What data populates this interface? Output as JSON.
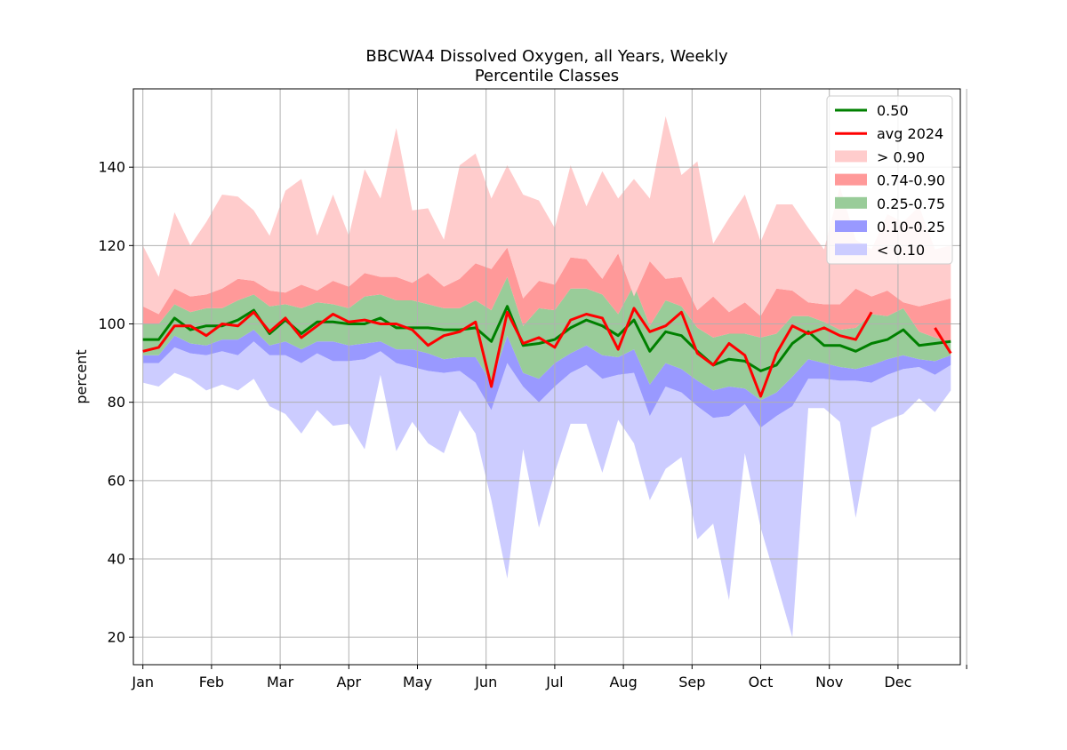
{
  "chart_data": {
    "type": "area",
    "title_line1": "BBCWA4 Dissolved Oxygen, all Years, Weekly",
    "title_line2": "Percentile Classes",
    "xlabel": "",
    "ylabel": "percent",
    "ylim": [
      13,
      160
    ],
    "yticks": [
      20,
      40,
      60,
      80,
      100,
      120,
      140
    ],
    "xticks": [
      "Jan",
      "Feb",
      "Mar",
      "Apr",
      "May",
      "Jun",
      "Jul",
      "Aug",
      "Sep",
      "Oct",
      "Nov",
      "Dec",
      ""
    ],
    "grid": true,
    "legend_position": "top-right",
    "x": [
      1,
      2,
      3,
      4,
      5,
      6,
      7,
      8,
      9,
      10,
      11,
      12,
      13,
      14,
      15,
      16,
      17,
      18,
      19,
      20,
      21,
      22,
      23,
      24,
      25,
      26,
      27,
      28,
      29,
      30,
      31,
      32,
      33,
      34,
      35,
      36,
      37,
      38,
      39,
      40,
      41,
      42,
      43,
      44,
      45,
      46,
      47,
      48,
      49,
      50,
      51,
      52
    ],
    "legend": [
      {
        "label": "0.50",
        "kind": "line",
        "color": "#008000"
      },
      {
        "label": "avg 2024",
        "kind": "line",
        "color": "#ff0000"
      },
      {
        "label": "> 0.90",
        "kind": "patch",
        "color": "#ffcccc"
      },
      {
        "label": "0.74-0.90",
        "kind": "patch",
        "color": "#ff9999"
      },
      {
        "label": "0.25-0.75",
        "kind": "patch",
        "color": "#99cc99"
      },
      {
        "label": "0.10-0.25",
        "kind": "patch",
        "color": "#9999ff"
      },
      {
        "label": "< 0.10",
        "kind": "patch",
        "color": "#ccccff"
      }
    ],
    "bands": [
      {
        "label": "< 0.10",
        "color": "#ccccff",
        "lower": [
          85,
          84,
          87.5,
          86,
          83,
          84.5,
          83,
          86,
          79,
          77,
          72,
          78,
          74,
          74.5,
          68,
          87,
          67.5,
          75,
          69.5,
          67,
          78,
          72,
          55,
          35,
          68,
          48,
          62,
          74.5,
          74.5,
          62,
          75.5,
          69.5,
          55,
          63,
          66,
          45,
          49,
          29.5,
          67,
          48,
          34,
          20,
          78.5,
          78.5,
          75,
          50.5,
          73.5,
          75.5,
          77,
          81,
          77.5,
          83
        ],
        "upper": [
          90,
          90,
          94,
          92.5,
          92,
          93,
          92,
          95.5,
          92,
          92,
          90,
          92.5,
          90.5,
          90.5,
          91,
          93,
          90,
          89,
          88,
          87.5,
          88,
          85,
          78,
          90,
          84,
          80,
          84,
          87.5,
          89.5,
          86,
          87,
          87.5,
          76.5,
          84,
          82.5,
          79,
          76,
          76.5,
          79.5,
          73.5,
          76.5,
          79,
          86,
          86,
          85.5,
          85.5,
          85,
          87,
          88.5,
          89,
          87,
          89.5
        ]
      },
      {
        "label": "0.10-0.25",
        "color": "#9999ff",
        "upper": [
          92,
          92,
          97,
          95,
          94.5,
          96,
          96,
          98.5,
          94.5,
          95.5,
          93.5,
          95.5,
          95.5,
          94.5,
          95,
          95.5,
          93.5,
          93.5,
          92.5,
          91,
          91.5,
          91.5,
          85,
          97,
          87.5,
          86,
          90,
          92.5,
          94.5,
          92,
          91.5,
          93.5,
          84.5,
          90,
          88.5,
          85.5,
          83,
          84,
          83.5,
          80.5,
          82.5,
          86.5,
          91,
          90,
          89,
          88.5,
          89.5,
          91,
          92,
          91,
          90.5,
          92
        ]
      },
      {
        "label": "0.25-0.75",
        "color": "#99cc99",
        "upper": [
          100,
          100,
          105,
          103,
          104,
          104,
          106,
          107.5,
          104.5,
          105,
          104,
          105.5,
          105,
          104,
          107,
          107.5,
          106,
          106,
          105,
          104,
          104,
          106,
          103.5,
          112,
          99.5,
          104,
          103.5,
          109,
          109,
          107.5,
          102.5,
          110,
          99.5,
          106,
          104.5,
          99,
          96.5,
          97.5,
          97.5,
          96.5,
          97.5,
          102,
          102,
          100.5,
          98.5,
          99,
          102.5,
          102,
          104,
          98,
          96.5,
          95.5
        ]
      },
      {
        "label": "0.74-0.90",
        "color": "#ff9999",
        "upper": [
          104.5,
          102.5,
          109,
          107,
          107.5,
          109,
          111.5,
          111,
          108.5,
          108,
          110,
          108.5,
          111,
          109.5,
          113,
          112,
          112,
          110.5,
          113,
          109.5,
          111.5,
          115.5,
          114,
          119.5,
          106.5,
          111,
          110,
          117,
          116.5,
          111.5,
          118,
          107,
          116,
          111.5,
          112,
          103.5,
          107,
          103,
          105.5,
          102,
          109,
          108.5,
          105.5,
          105,
          105,
          109,
          107,
          108.5,
          105.5,
          104.5,
          105.5,
          106.5
        ]
      },
      {
        "label": "> 0.90",
        "color": "#ffcccc",
        "upper": [
          120,
          112,
          128.5,
          120,
          126,
          133,
          132.5,
          129,
          122.5,
          134,
          137,
          122.5,
          133,
          122.5,
          139.5,
          132,
          150,
          129,
          129.5,
          121.5,
          140.5,
          143.5,
          132,
          140.5,
          133,
          131.5,
          124.5,
          140.5,
          130,
          139,
          132,
          137,
          132,
          153,
          138,
          141.5,
          120.5,
          127,
          133,
          121,
          130.5,
          130.5,
          124.5,
          119,
          135,
          121.5,
          119,
          128,
          126,
          130,
          119,
          120
        ]
      }
    ],
    "series": [
      {
        "name": "0.50",
        "color": "#008000",
        "values": [
          96,
          96,
          101.5,
          98.5,
          99.5,
          99.5,
          101,
          103.5,
          97.5,
          101,
          97.5,
          100.5,
          100.5,
          100,
          100,
          101.5,
          99,
          99,
          99,
          98.5,
          98.5,
          99,
          95.5,
          104.5,
          94.5,
          95,
          96,
          99,
          101,
          99.5,
          97,
          101,
          93,
          98,
          97,
          93,
          89.5,
          91,
          90.5,
          88,
          89.5,
          95,
          98,
          94.5,
          94.5,
          93,
          95,
          96,
          98.5,
          94.5,
          95,
          95.5
        ]
      },
      {
        "name": "avg 2024",
        "color": "#ff0000",
        "values": [
          93,
          94,
          99.5,
          99.5,
          97,
          100,
          99.5,
          103,
          98,
          101.5,
          96.5,
          99.5,
          102.5,
          100.5,
          101,
          100,
          100,
          98.5,
          94.5,
          97,
          98,
          100.5,
          84,
          103,
          95,
          96.5,
          94,
          101,
          102.5,
          101.5,
          93.5,
          104,
          98,
          99.5,
          103,
          92.5,
          89.5,
          95,
          92,
          81.5,
          92.5,
          99.5,
          97.5,
          99,
          97,
          96,
          103,
          null,
          null,
          null,
          99,
          92.5
        ]
      }
    ]
  }
}
